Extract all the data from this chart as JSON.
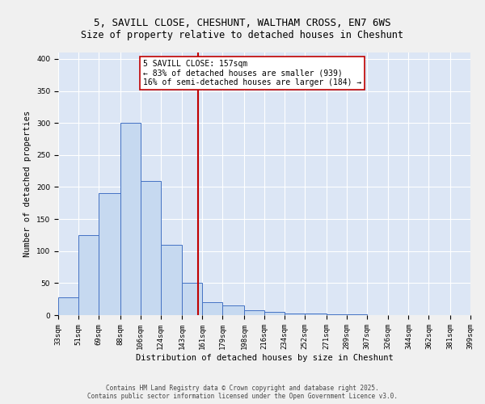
{
  "title1": "5, SAVILL CLOSE, CHESHUNT, WALTHAM CROSS, EN7 6WS",
  "title2": "Size of property relative to detached houses in Cheshunt",
  "xlabel": "Distribution of detached houses by size in Cheshunt",
  "ylabel": "Number of detached properties",
  "bin_edges": [
    33,
    51,
    69,
    88,
    106,
    124,
    143,
    161,
    179,
    198,
    216,
    234,
    252,
    271,
    289,
    307,
    326,
    344,
    362,
    381,
    399
  ],
  "bar_heights": [
    28,
    125,
    190,
    300,
    210,
    110,
    50,
    20,
    15,
    8,
    5,
    3,
    2,
    1,
    1,
    0,
    0,
    0,
    0,
    0
  ],
  "bar_color": "#c6d9f0",
  "bar_edge_color": "#4472c4",
  "vline_x": 157,
  "vline_color": "#c00000",
  "annotation_text": "5 SAVILL CLOSE: 157sqm\n← 83% of detached houses are smaller (939)\n16% of semi-detached houses are larger (184) →",
  "annotation_box_color": "#ffffff",
  "annotation_box_edge": "#c00000",
  "ylim": [
    0,
    410
  ],
  "yticks": [
    0,
    50,
    100,
    150,
    200,
    250,
    300,
    350,
    400
  ],
  "fig_bg_color": "#f0f0f0",
  "plot_bg_color": "#dce6f5",
  "footer_text": "Contains HM Land Registry data © Crown copyright and database right 2025.\nContains public sector information licensed under the Open Government Licence v3.0.",
  "title_fontsize": 9,
  "subtitle_fontsize": 8.5,
  "axis_label_fontsize": 7.5,
  "tick_fontsize": 6.5,
  "annotation_fontsize": 7,
  "footer_fontsize": 5.5
}
